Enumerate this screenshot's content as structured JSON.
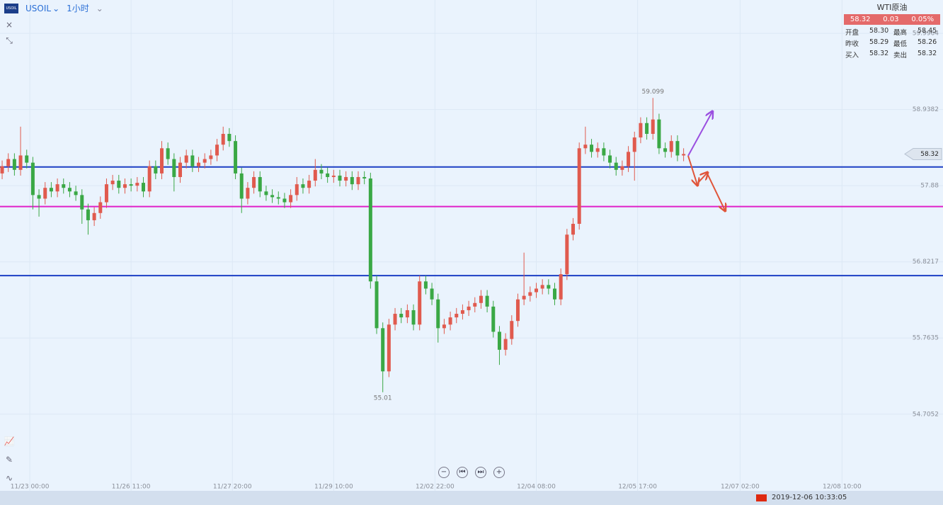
{
  "header": {
    "symbol": "USOIL",
    "interval": "1小时"
  },
  "quote": {
    "name": "WTI原油",
    "price": "58.32",
    "change": "0.03",
    "change_pct": "0.05%",
    "rows": [
      [
        "开盘",
        "58.30",
        "最高",
        "58.45"
      ],
      [
        "昨收",
        "58.29",
        "最低",
        "58.26"
      ],
      [
        "买入",
        "58.32",
        "卖出",
        "58.32"
      ]
    ]
  },
  "status": {
    "datetime": "2019-12-06 10:33:05"
  },
  "chart_data": {
    "type": "candlestick",
    "up_color": "#e05a4e",
    "down_color": "#3aa845",
    "open": [
      58.05,
      58.15,
      58.25,
      58.1,
      58.3,
      58.2,
      57.75,
      57.7,
      57.85,
      57.8,
      57.9,
      57.85,
      57.8,
      57.75,
      57.55,
      57.4,
      57.5,
      57.65,
      57.9,
      57.95,
      57.85,
      57.9,
      57.88,
      57.92,
      57.8,
      58.15,
      58.05,
      58.4,
      58.25,
      58.0,
      58.2,
      58.3,
      58.15,
      58.2,
      58.25,
      58.3,
      58.45,
      58.6,
      58.5,
      58.05,
      57.7,
      57.85,
      58.0,
      57.8,
      57.75,
      57.72,
      57.7,
      57.65,
      57.75,
      57.9,
      57.85,
      57.95,
      58.1,
      58.05,
      58.0,
      58.02,
      57.95,
      58.0,
      57.9,
      58.0,
      57.98,
      56.55,
      55.9,
      55.3,
      55.95,
      56.1,
      56.05,
      56.15,
      55.95,
      56.55,
      56.45,
      56.3,
      55.9,
      55.95,
      56.05,
      56.1,
      56.15,
      56.2,
      56.25,
      56.35,
      56.2,
      55.85,
      55.6,
      55.75,
      56.0,
      56.3,
      56.35,
      56.4,
      56.45,
      56.5,
      56.45,
      56.3,
      56.65,
      57.2,
      57.35,
      58.4,
      58.45,
      58.35,
      58.4,
      58.3,
      58.2,
      58.1,
      58.15,
      58.35,
      58.55,
      58.75,
      58.6,
      58.8,
      58.4,
      58.35,
      58.5,
      58.3
    ],
    "high": [
      58.23,
      58.33,
      58.33,
      58.7,
      58.38,
      58.28,
      57.83,
      57.93,
      57.93,
      57.98,
      57.98,
      57.93,
      57.88,
      57.83,
      57.63,
      57.58,
      57.73,
      57.98,
      58.03,
      58.03,
      57.98,
      57.98,
      58.0,
      58.0,
      58.23,
      58.23,
      58.5,
      58.48,
      58.33,
      58.28,
      58.38,
      58.38,
      58.28,
      58.33,
      58.38,
      58.53,
      58.7,
      58.68,
      58.58,
      58.13,
      57.93,
      58.08,
      58.08,
      57.88,
      57.83,
      57.8,
      57.78,
      57.83,
      58.0,
      57.98,
      58.03,
      58.25,
      58.18,
      58.13,
      58.1,
      58.1,
      58.08,
      58.08,
      58.08,
      58.08,
      58.06,
      56.63,
      55.98,
      56.03,
      56.18,
      56.18,
      56.23,
      56.23,
      56.63,
      56.63,
      56.53,
      56.38,
      56.03,
      56.13,
      56.18,
      56.23,
      56.28,
      56.33,
      56.43,
      56.43,
      56.28,
      55.93,
      55.83,
      56.08,
      56.38,
      56.95,
      56.48,
      56.53,
      56.58,
      56.58,
      56.53,
      56.73,
      57.28,
      57.43,
      58.48,
      58.7,
      58.53,
      58.48,
      58.48,
      58.38,
      58.28,
      58.23,
      58.43,
      58.63,
      58.83,
      58.83,
      59.099,
      58.88,
      58.48,
      58.58,
      58.58,
      58.4
    ],
    "low": [
      57.97,
      58.07,
      58.02,
      58.02,
      58.12,
      57.55,
      57.45,
      57.62,
      57.72,
      57.72,
      57.77,
      57.72,
      57.67,
      57.35,
      57.2,
      57.32,
      57.42,
      57.57,
      57.82,
      57.77,
      57.77,
      57.8,
      57.8,
      57.72,
      57.72,
      57.97,
      57.97,
      58.17,
      57.8,
      57.92,
      58.12,
      58.07,
      58.07,
      58.12,
      58.17,
      58.22,
      58.37,
      58.42,
      57.97,
      57.5,
      57.62,
      57.77,
      57.72,
      57.67,
      57.64,
      57.62,
      57.57,
      57.57,
      57.67,
      57.77,
      57.77,
      57.87,
      57.97,
      57.92,
      57.92,
      57.87,
      57.87,
      57.82,
      57.82,
      57.9,
      56.45,
      55.82,
      55.01,
      55.22,
      55.87,
      55.97,
      55.97,
      55.87,
      55.87,
      56.37,
      56.22,
      55.7,
      55.82,
      55.87,
      55.97,
      56.02,
      56.07,
      56.12,
      56.17,
      56.12,
      55.77,
      55.39,
      55.52,
      55.67,
      55.92,
      56.22,
      56.27,
      56.32,
      56.37,
      56.37,
      56.22,
      56.22,
      56.57,
      57.12,
      57.27,
      58.32,
      58.27,
      58.27,
      58.22,
      58.12,
      58.02,
      58.02,
      58.07,
      57.95,
      58.47,
      58.52,
      58.52,
      58.32,
      58.27,
      58.27,
      58.22,
      58.22
    ],
    "close": [
      58.15,
      58.25,
      58.1,
      58.3,
      58.2,
      57.75,
      57.7,
      57.85,
      57.8,
      57.9,
      57.85,
      57.8,
      57.75,
      57.55,
      57.4,
      57.5,
      57.65,
      57.9,
      57.95,
      57.85,
      57.9,
      57.88,
      57.92,
      57.8,
      58.15,
      58.05,
      58.4,
      58.25,
      58.0,
      58.2,
      58.3,
      58.15,
      58.2,
      58.25,
      58.3,
      58.45,
      58.6,
      58.5,
      58.05,
      57.7,
      57.85,
      58.0,
      57.8,
      57.75,
      57.72,
      57.7,
      57.65,
      57.75,
      57.9,
      57.85,
      57.95,
      58.1,
      58.05,
      58.0,
      58.02,
      57.95,
      58.0,
      57.9,
      58.0,
      57.98,
      56.55,
      55.9,
      55.3,
      55.95,
      56.1,
      56.05,
      56.15,
      55.95,
      56.55,
      56.45,
      56.3,
      55.9,
      55.95,
      56.05,
      56.1,
      56.15,
      56.2,
      56.25,
      56.35,
      56.2,
      55.85,
      55.6,
      55.75,
      56.0,
      56.3,
      56.35,
      56.4,
      56.45,
      56.5,
      56.45,
      56.3,
      56.65,
      57.2,
      57.35,
      58.4,
      58.45,
      58.35,
      58.4,
      58.3,
      58.2,
      58.1,
      58.15,
      58.35,
      58.55,
      58.75,
      58.6,
      58.8,
      58.4,
      58.35,
      58.5,
      58.3,
      58.32
    ],
    "high_label": "59.099",
    "low_label": "55.01",
    "last_price": 58.32,
    "hlines": [
      {
        "value": 58.14,
        "color": "#1c3fc4"
      },
      {
        "value": 57.59,
        "color": "#e020c8"
      },
      {
        "value": 56.63,
        "color": "#1c3fc4"
      }
    ],
    "xlim": [
      -0.35,
      153.25
    ],
    "xticks": [
      {
        "value": 4.5,
        "label": "11/23 00:00"
      },
      {
        "value": 21,
        "label": "11/26 11:00"
      },
      {
        "value": 37.5,
        "label": "11/27 20:00"
      },
      {
        "value": 54,
        "label": "11/29 10:00"
      },
      {
        "value": 70.5,
        "label": "12/02 22:00"
      },
      {
        "value": 87,
        "label": "12/04 08:00"
      },
      {
        "value": 103.5,
        "label": "12/05 17:00"
      },
      {
        "value": 120.2,
        "label": "12/07 02:00"
      },
      {
        "value": 136.8,
        "label": "12/08 10:00"
      }
    ],
    "ylim": [
      53.64,
      60.46
    ],
    "yticks": [
      {
        "value": 59.9964,
        "label": "59.9964"
      },
      {
        "value": 58.9382,
        "label": "58.9382"
      },
      57.88,
      {
        "value": 56.8217,
        "label": "56.8217"
      },
      {
        "value": 55.7635,
        "label": "55.7635"
      },
      {
        "value": 54.7052,
        "label": "54.7052"
      }
    ],
    "grid": true
  }
}
